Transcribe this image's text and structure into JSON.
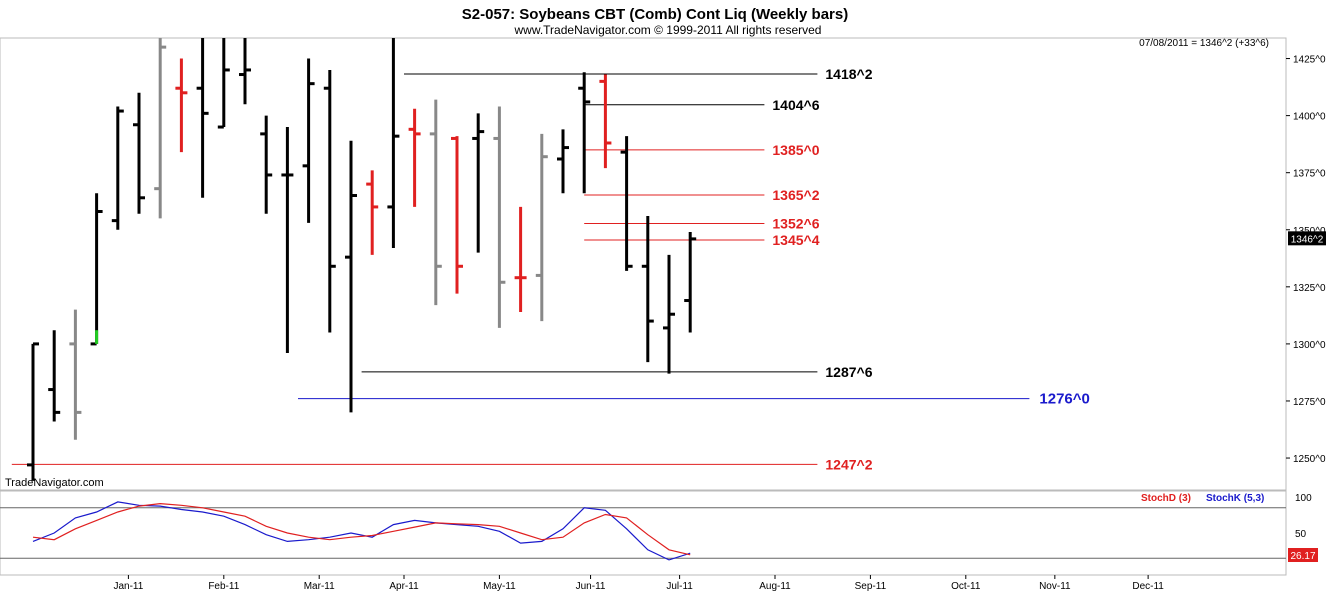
{
  "header": {
    "title": "S2-057:  Soybeans CBT (Comb) Cont Liq  (Weekly bars)",
    "copyright": "www.TradeNavigator.com © 1999-2011 All rights reserved",
    "watermark": "TradeNavigator.com",
    "last_price_note": "07/08/2011 = 1346^2 (+33^6)",
    "last_price_tag": "1346^2",
    "stoch_value_tag": "26.17"
  },
  "colors": {
    "bar_up": "#000000",
    "bar_down": "#e02020",
    "bar_neutral": "#888888",
    "bar_green": "#22cc22",
    "stoch_d": "#e02020",
    "stoch_k": "#2222cc",
    "level_blue": "#1a1acc",
    "level_red": "#e02020",
    "level_black": "#000000"
  },
  "chart_data": [
    {
      "type": "ohlc",
      "y_axis_ticks": [
        {
          "v": 1425,
          "label": "1425^0"
        },
        {
          "v": 1400,
          "label": "1400^0"
        },
        {
          "v": 1375,
          "label": "1375^0"
        },
        {
          "v": 1350,
          "label": "1350^0"
        },
        {
          "v": 1325,
          "label": "1325^0"
        },
        {
          "v": 1300,
          "label": "1300^0"
        },
        {
          "v": 1275,
          "label": "1275^0"
        },
        {
          "v": 1250,
          "label": "1250^0"
        }
      ],
      "ylim": [
        1236,
        1434
      ],
      "x_axis_labels": [
        {
          "w": 4.5,
          "label": "Jan-11"
        },
        {
          "w": 9,
          "label": "Feb-11"
        },
        {
          "w": 13.5,
          "label": "Mar-11"
        },
        {
          "w": 17.5,
          "label": "Apr-11"
        },
        {
          "w": 22,
          "label": "May-11"
        },
        {
          "w": 26.3,
          "label": "Jun-11"
        },
        {
          "w": 30.5,
          "label": "Jul-11"
        },
        {
          "w": 35,
          "label": "Aug-11"
        },
        {
          "w": 39.5,
          "label": "Sep-11"
        },
        {
          "w": 44,
          "label": "Oct-11"
        },
        {
          "w": 48.2,
          "label": "Nov-11"
        },
        {
          "w": 52.6,
          "label": "Dec-11"
        }
      ],
      "bars": [
        {
          "w": 0,
          "o": 1247,
          "h": 1300,
          "l": 1240,
          "c": 1300,
          "color": "black"
        },
        {
          "w": 1,
          "o": 1280,
          "h": 1306,
          "l": 1266,
          "c": 1270,
          "color": "black"
        },
        {
          "w": 2,
          "o": 1300,
          "h": 1315,
          "l": 1258,
          "c": 1270,
          "color": "gray"
        },
        {
          "w": 3,
          "o": 1300,
          "h": 1366,
          "l": 1300,
          "c": 1358,
          "color": "black"
        },
        {
          "w": 4,
          "o": 1354,
          "h": 1404,
          "l": 1350,
          "c": 1402,
          "color": "black"
        },
        {
          "w": 5,
          "o": 1396,
          "h": 1410,
          "l": 1357,
          "c": 1364,
          "color": "black"
        },
        {
          "w": 6,
          "o": 1368,
          "h": 1434,
          "l": 1355,
          "c": 1430,
          "color": "gray"
        },
        {
          "w": 7,
          "o": 1412,
          "h": 1425,
          "l": 1384,
          "c": 1410,
          "color": "red"
        },
        {
          "w": 8,
          "o": 1412,
          "h": 1434,
          "l": 1364,
          "c": 1401,
          "color": "black"
        },
        {
          "w": 9,
          "o": 1395,
          "h": 1434,
          "l": 1395,
          "c": 1420,
          "color": "black"
        },
        {
          "w": 10,
          "o": 1418,
          "h": 1434,
          "l": 1405,
          "c": 1420,
          "color": "black"
        },
        {
          "w": 11,
          "o": 1392,
          "h": 1400,
          "l": 1357,
          "c": 1374,
          "color": "black"
        },
        {
          "w": 12,
          "o": 1374,
          "h": 1395,
          "l": 1296,
          "c": 1374,
          "color": "black"
        },
        {
          "w": 13,
          "o": 1378,
          "h": 1425,
          "l": 1353,
          "c": 1414,
          "color": "black"
        },
        {
          "w": 14,
          "o": 1412,
          "h": 1420,
          "l": 1305,
          "c": 1334,
          "color": "black"
        },
        {
          "w": 15,
          "o": 1338,
          "h": 1389,
          "l": 1270,
          "c": 1365,
          "color": "black"
        },
        {
          "w": 16,
          "o": 1370,
          "h": 1376,
          "l": 1339,
          "c": 1360,
          "color": "red"
        },
        {
          "w": 17,
          "o": 1360,
          "h": 1434,
          "l": 1342,
          "c": 1391,
          "color": "black"
        },
        {
          "w": 18,
          "o": 1394,
          "h": 1403,
          "l": 1360,
          "c": 1392,
          "color": "red"
        },
        {
          "w": 19,
          "o": 1392,
          "h": 1407,
          "l": 1317,
          "c": 1334,
          "color": "gray"
        },
        {
          "w": 20,
          "o": 1390,
          "h": 1391,
          "l": 1322,
          "c": 1334,
          "color": "red"
        },
        {
          "w": 21,
          "o": 1390,
          "h": 1401,
          "l": 1340,
          "c": 1393,
          "color": "black"
        },
        {
          "w": 22,
          "o": 1390,
          "h": 1404,
          "l": 1307,
          "c": 1327,
          "color": "gray"
        },
        {
          "w": 23,
          "o": 1329,
          "h": 1360,
          "l": 1314,
          "c": 1329,
          "color": "red"
        },
        {
          "w": 24,
          "o": 1330,
          "h": 1392,
          "l": 1310,
          "c": 1382,
          "color": "gray"
        },
        {
          "w": 25,
          "o": 1381,
          "h": 1394,
          "l": 1366,
          "c": 1386,
          "color": "black"
        },
        {
          "w": 26,
          "o": 1412,
          "h": 1419,
          "l": 1366,
          "c": 1406,
          "color": "black"
        },
        {
          "w": 27,
          "o": 1415,
          "h": 1418,
          "l": 1377,
          "c": 1388,
          "color": "red"
        },
        {
          "w": 28,
          "o": 1384,
          "h": 1391,
          "l": 1332,
          "c": 1334,
          "color": "black"
        },
        {
          "w": 29,
          "o": 1334,
          "h": 1356,
          "l": 1292,
          "c": 1310,
          "color": "black"
        },
        {
          "w": 30,
          "o": 1307,
          "h": 1339,
          "l": 1287,
          "c": 1313,
          "color": "black"
        },
        {
          "w": 31,
          "o": 1319,
          "h": 1349,
          "l": 1305,
          "c": 1346,
          "color": "black"
        }
      ],
      "levels": [
        {
          "v": 1418.25,
          "label": "1418^2",
          "color": "black",
          "from_w": 17.5,
          "to_w": 37
        },
        {
          "v": 1404.75,
          "label": "1404^6",
          "color": "black",
          "from_w": 26,
          "to_w": 34.5
        },
        {
          "v": 1385,
          "label": "1385^0",
          "color": "red",
          "from_w": 26,
          "to_w": 34.5
        },
        {
          "v": 1365.25,
          "label": "1365^2",
          "color": "red",
          "from_w": 26,
          "to_w": 34.5
        },
        {
          "v": 1352.75,
          "label": "1352^6",
          "color": "red",
          "from_w": 26,
          "to_w": 34.5
        },
        {
          "v": 1345.5,
          "label": "1345^4",
          "color": "red",
          "from_w": 26,
          "to_w": 34.5
        },
        {
          "v": 1287.75,
          "label": "1287^6",
          "color": "black",
          "from_w": 15.5,
          "to_w": 37
        },
        {
          "v": 1276,
          "label": "1276^0",
          "color": "blue",
          "from_w": 12.5,
          "to_w": 47
        },
        {
          "v": 1247.25,
          "label": "1247^2",
          "color": "red",
          "from_w": -1,
          "to_w": 37
        }
      ],
      "last_price": 1346.25
    },
    {
      "type": "line",
      "legend": [
        {
          "name": "StochD (3)",
          "color": "red"
        },
        {
          "name": "StochK (5,3)",
          "color": "blue"
        }
      ],
      "y_axis_ticks": [
        {
          "v": 100,
          "label": "100"
        },
        {
          "v": 50,
          "label": "50"
        }
      ],
      "ylim": [
        0,
        100
      ],
      "reference_lines": [
        80,
        20
      ],
      "series": [
        {
          "name": "StochK (5,3)",
          "color": "blue",
          "x": [
            0,
            1,
            2,
            3,
            4,
            5,
            6,
            7,
            8,
            9,
            10,
            11,
            12,
            13,
            14,
            15,
            16,
            17,
            18,
            19,
            20,
            21,
            22,
            23,
            24,
            25,
            26,
            27,
            28,
            29,
            30,
            31
          ],
          "values": [
            40,
            50,
            68,
            75,
            87,
            83,
            82,
            78,
            75,
            70,
            60,
            48,
            40,
            42,
            45,
            50,
            45,
            60,
            65,
            62,
            60,
            58,
            52,
            38,
            40,
            55,
            80,
            77,
            55,
            30,
            18,
            26
          ]
        },
        {
          "name": "StochD (3)",
          "color": "red",
          "x": [
            0,
            1,
            2,
            3,
            4,
            5,
            6,
            7,
            8,
            9,
            10,
            11,
            12,
            13,
            14,
            15,
            16,
            17,
            18,
            19,
            20,
            21,
            22,
            23,
            24,
            25,
            26,
            27,
            28,
            29,
            30,
            31
          ],
          "values": [
            45,
            42,
            55,
            65,
            75,
            82,
            85,
            83,
            80,
            75,
            70,
            58,
            50,
            45,
            42,
            45,
            47,
            52,
            57,
            62,
            61,
            60,
            58,
            50,
            42,
            45,
            62,
            72,
            68,
            48,
            30,
            24
          ]
        }
      ]
    }
  ]
}
